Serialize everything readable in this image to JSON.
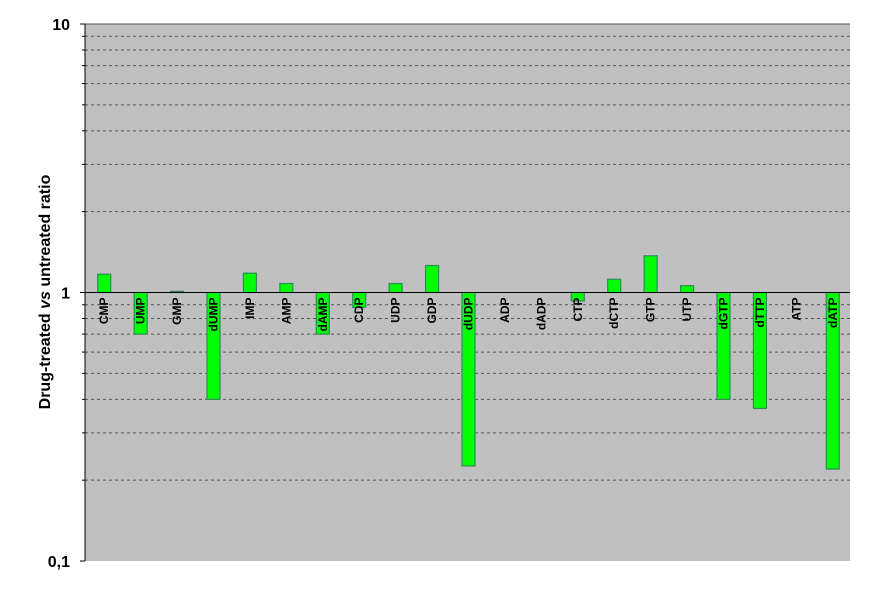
{
  "chart_data": {
    "type": "bar",
    "title": "",
    "ylabel": {
      "prefix": "Drug-treated ",
      "italic": "vs",
      "suffix": " untreated ratio"
    },
    "yscale": "log",
    "ylim": [
      0.1,
      10
    ],
    "yticks": [
      {
        "value": 10,
        "label": "10"
      },
      {
        "value": 1,
        "label": "1"
      },
      {
        "value": 0.1,
        "label": "0,1"
      }
    ],
    "baseline": 1,
    "grid": true,
    "grid_style": "dashed",
    "plot_background": "#c0c0c0",
    "bar_color": "#00ff00",
    "bar_edge_color": "#2e8b57",
    "categories": [
      "CMP",
      "UMP",
      "GMP",
      "dUMP",
      "IMP",
      "AMP",
      "dAMP",
      "CDP",
      "UDP",
      "GDP",
      "dUDP",
      "ADP",
      "dADP",
      "CTP",
      "dCTP",
      "GTP",
      "UTP",
      "dGTP",
      "dTTP",
      "ATP",
      "dATP"
    ],
    "values": [
      1.17,
      0.7,
      1.01,
      0.4,
      1.18,
      1.08,
      0.7,
      0.88,
      1.08,
      1.26,
      0.226,
      1.0,
      1.0,
      0.93,
      1.12,
      1.37,
      1.06,
      0.4,
      0.37,
      1.0,
      0.22
    ]
  }
}
